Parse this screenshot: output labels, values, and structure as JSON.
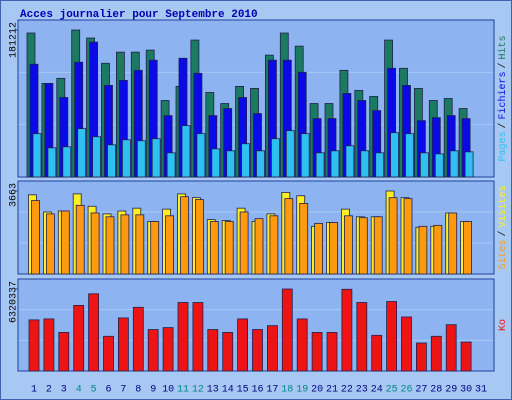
{
  "legend_separator": "/",
  "chart_data": [
    {
      "type": "bar",
      "title": "Acces journalier pour Septembre 2010",
      "ylim": [
        0,
        181212
      ],
      "yticks": [
        181212
      ],
      "series": [
        {
          "name": "Hits",
          "color": "#1b7a60",
          "values": [
            177500,
            115400,
            121600,
            181212,
            171300,
            140200,
            153900,
            153900,
            156400,
            94300,
            111700,
            168800,
            104200,
            90600,
            111700,
            109200,
            150200,
            177500,
            161300,
            90600,
            90600,
            131500,
            106700,
            99300,
            168800,
            134000,
            109200,
            94300,
            96800,
            84400,
            null
          ]
        },
        {
          "name": "Fichiers",
          "color": "#0a0ae6",
          "values": [
            139000,
            115400,
            98000,
            141500,
            166300,
            112900,
            119100,
            131500,
            144000,
            75700,
            146400,
            127800,
            75700,
            84400,
            98000,
            78200,
            144000,
            144000,
            129100,
            72000,
            72000,
            103000,
            94300,
            81900,
            134000,
            112900,
            69500,
            73200,
            75700,
            72000,
            null
          ]
        },
        {
          "name": "Pages",
          "color": "#2ec0f0",
          "values": [
            53400,
            36000,
            37200,
            59600,
            49600,
            39700,
            45900,
            44700,
            47200,
            29800,
            63300,
            53400,
            34700,
            32300,
            41000,
            32300,
            47200,
            57100,
            53400,
            29800,
            32300,
            38500,
            32300,
            29800,
            54600,
            53400,
            29800,
            28500,
            32300,
            31000,
            null
          ]
        }
      ]
    },
    {
      "type": "bar",
      "ylim": [
        0,
        3663
      ],
      "yticks": [
        3663
      ],
      "series": [
        {
          "name": "Visites",
          "color": "#ffee22",
          "values": [
            3494,
            2737,
            2779,
            3536,
            2989,
            2652,
            2779,
            2905,
            2316,
            2863,
            3536,
            3368,
            2400,
            2358,
            2905,
            2316,
            2652,
            3600,
            3452,
            2105,
            2273,
            2863,
            2526,
            2526,
            3663,
            3368,
            2063,
            2105,
            2694,
            2316,
            null
          ]
        },
        {
          "name": "Sites",
          "color": "#ff9a10",
          "values": [
            3242,
            2652,
            2779,
            3031,
            2694,
            2526,
            2610,
            2610,
            2316,
            2568,
            3410,
            3284,
            2316,
            2316,
            2737,
            2442,
            2568,
            3326,
            3115,
            2231,
            2273,
            2568,
            2484,
            2526,
            3368,
            3326,
            2105,
            2147,
            2694,
            2316,
            null
          ]
        }
      ]
    },
    {
      "type": "bar",
      "ylim": [
        0,
        6320337
      ],
      "yticks": [
        6320337
      ],
      "series": [
        {
          "name": "Ko",
          "color": "#ee1414",
          "values": [
            3941000,
            4015000,
            2974000,
            5056000,
            5949000,
            2677000,
            4090000,
            4908000,
            3197000,
            3346000,
            5279000,
            5279000,
            3197000,
            2974000,
            4015000,
            3197000,
            3495000,
            6320337,
            4015000,
            2974000,
            2974000,
            6300000,
            5279000,
            2751000,
            5354000,
            4164000,
            2156000,
            2677000,
            3569000,
            2231000,
            null
          ]
        }
      ],
      "categories": [
        "1",
        "2",
        "3",
        "4",
        "5",
        "6",
        "7",
        "8",
        "9",
        "10",
        "11",
        "12",
        "13",
        "14",
        "15",
        "16",
        "17",
        "18",
        "19",
        "20",
        "21",
        "22",
        "23",
        "24",
        "25",
        "26",
        "27",
        "28",
        "29",
        "30",
        "31"
      ],
      "category_color": "#000080",
      "weekend_color": "#008888",
      "weekend": [
        3,
        4,
        10,
        11,
        17,
        18,
        24,
        25
      ]
    }
  ]
}
